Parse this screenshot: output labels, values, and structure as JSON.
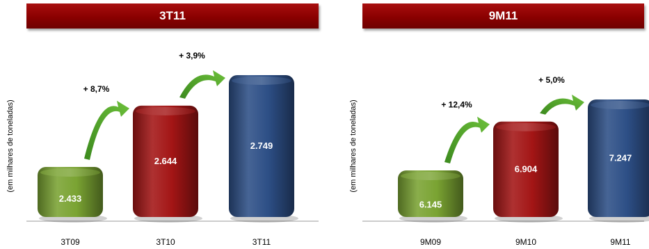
{
  "chart_data": [
    {
      "type": "bar",
      "title": "3T11",
      "ylabel": "(em milhares de toneladas)",
      "categories": [
        "3T09",
        "3T10",
        "3T11"
      ],
      "values": [
        2433,
        2644,
        2749
      ],
      "value_labels": [
        "2.433",
        "2.644",
        "2.749"
      ],
      "colors": [
        "#7aa332",
        "#a31515",
        "#2d4f86"
      ],
      "growth_labels": [
        "+ 8,7%",
        "+ 3,9%"
      ],
      "ylim": [
        2300,
        2780
      ],
      "grid": false,
      "legend": "none"
    },
    {
      "type": "bar",
      "title": "9M11",
      "ylabel": "(em milhares de toneladas)",
      "categories": [
        "9M09",
        "9M10",
        "9M11"
      ],
      "values": [
        6145,
        6904,
        7247
      ],
      "value_labels": [
        "6.145",
        "6.904",
        "7.247"
      ],
      "colors": [
        "#7aa332",
        "#a31515",
        "#2d4f86"
      ],
      "growth_labels": [
        "+ 12,4%",
        "+ 5,0%"
      ],
      "ylim": [
        5750,
        7450
      ],
      "grid": false,
      "legend": "none"
    }
  ]
}
